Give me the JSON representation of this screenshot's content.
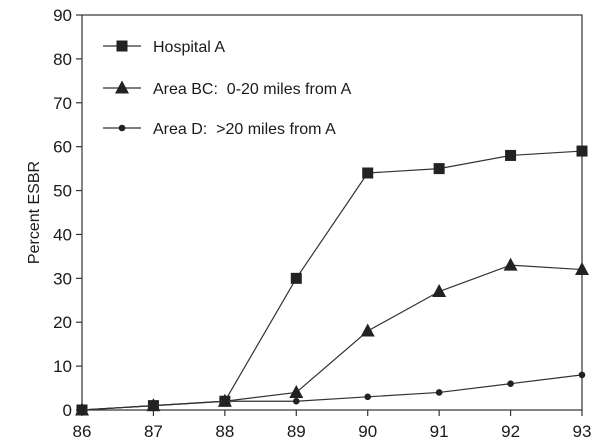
{
  "chart_data": {
    "type": "line",
    "title": "",
    "xlabel": "",
    "ylabel": "Percent ESBR",
    "x": [
      86,
      87,
      88,
      89,
      90,
      91,
      92,
      93
    ],
    "x_tick_labels": [
      "86",
      "87",
      "88",
      "89",
      "90",
      "91",
      "92",
      "93"
    ],
    "xlim": [
      86,
      93
    ],
    "ylim": [
      0,
      90
    ],
    "y_ticks": [
      0,
      10,
      20,
      30,
      40,
      50,
      60,
      70,
      80,
      90
    ],
    "grid": false,
    "legend_position": "top-left",
    "series": [
      {
        "name": "Hospital A",
        "marker": "square",
        "values": [
          0,
          1,
          2,
          30,
          54,
          55,
          58,
          59
        ]
      },
      {
        "name": "Area BC:  0-20 miles from A",
        "marker": "triangle",
        "values": [
          0,
          1,
          2,
          4,
          18,
          27,
          33,
          32
        ]
      },
      {
        "name": "Area D:  >20 miles from A",
        "marker": "dot",
        "values": [
          0,
          1,
          2,
          2,
          3,
          4,
          6,
          8
        ]
      }
    ],
    "colors": {
      "line": "#333333",
      "marker": "#222222"
    }
  }
}
